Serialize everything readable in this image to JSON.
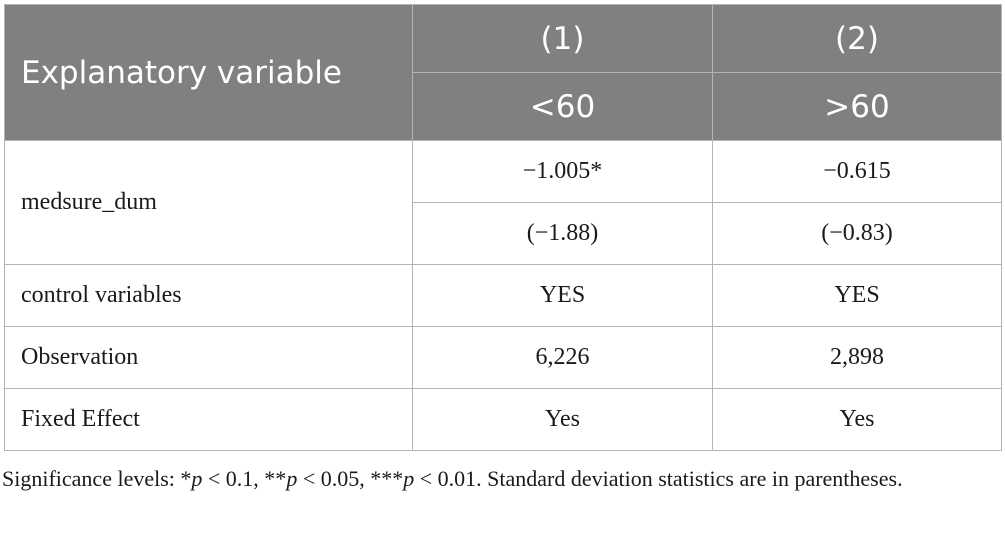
{
  "header": {
    "col0": "Explanatory variable",
    "col1": "(1)",
    "col2": "(2)",
    "sub1": "<60",
    "sub2": ">60"
  },
  "rows": {
    "medsure": {
      "label": "medsure_dum",
      "coef1": "−1.005*",
      "coef2": "−0.615",
      "stat1": "(−1.88)",
      "stat2": "(−0.83)"
    },
    "control": {
      "label": "control variables",
      "v1": "YES",
      "v2": "YES"
    },
    "obs": {
      "label": "Observation",
      "v1": "6,226",
      "v2": "2,898"
    },
    "fe": {
      "label": "Fixed Effect",
      "v1": "Yes",
      "v2": "Yes"
    }
  },
  "note": {
    "prefix": "Significance levels: *",
    "p": "p",
    "t1": " < 0.1, **",
    "t2": " < 0.05, ***",
    "t3": " < 0.01. Standard deviation statistics are in parentheses."
  }
}
